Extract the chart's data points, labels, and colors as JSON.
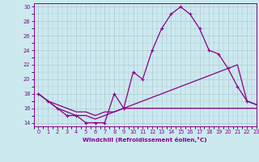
{
  "xlabel": "Windchill (Refroidissement éolien,°C)",
  "xlim": [
    -0.5,
    23
  ],
  "ylim": [
    13.5,
    30.5
  ],
  "yticks": [
    14,
    16,
    18,
    20,
    22,
    24,
    26,
    28,
    30
  ],
  "xticks": [
    0,
    1,
    2,
    3,
    4,
    5,
    6,
    7,
    8,
    9,
    10,
    11,
    12,
    13,
    14,
    15,
    16,
    17,
    18,
    19,
    20,
    21,
    22,
    23
  ],
  "background_color": "#cce9f0",
  "grid_color": "#b0c8d0",
  "line_color": "#880088",
  "line1_x": [
    0,
    1,
    2,
    3,
    4,
    5,
    6,
    7,
    8,
    9,
    10,
    11,
    12,
    13,
    14,
    15,
    16,
    17,
    18,
    19,
    20,
    21,
    22,
    23
  ],
  "line1_y": [
    18,
    17,
    16,
    15,
    15,
    14,
    14,
    14,
    18,
    16,
    21,
    20,
    24,
    27,
    29,
    30,
    29,
    27,
    24,
    23.5,
    21.5,
    19,
    17,
    16.5
  ],
  "line2_x": [
    0,
    1,
    2,
    3,
    4,
    5,
    6,
    7,
    8,
    9,
    10,
    11,
    12,
    13,
    14,
    15,
    16,
    17,
    18,
    19,
    20,
    21,
    22,
    23
  ],
  "line2_y": [
    18,
    17,
    16,
    15.5,
    15,
    15,
    14.5,
    15,
    15.5,
    16,
    16.5,
    17,
    17.5,
    18,
    18.5,
    19,
    19.5,
    20,
    20.5,
    21,
    21.5,
    22,
    17,
    16.5
  ],
  "line3_x": [
    0,
    1,
    2,
    3,
    4,
    5,
    6,
    7,
    8,
    9,
    10,
    11,
    12,
    13,
    14,
    15,
    16,
    17,
    18,
    19,
    20,
    21,
    22,
    23
  ],
  "line3_y": [
    18,
    17,
    16.5,
    16,
    15.5,
    15.5,
    15,
    15.5,
    15.5,
    16,
    16,
    16,
    16,
    16,
    16,
    16,
    16,
    16,
    16,
    16,
    16,
    16,
    16,
    16
  ]
}
